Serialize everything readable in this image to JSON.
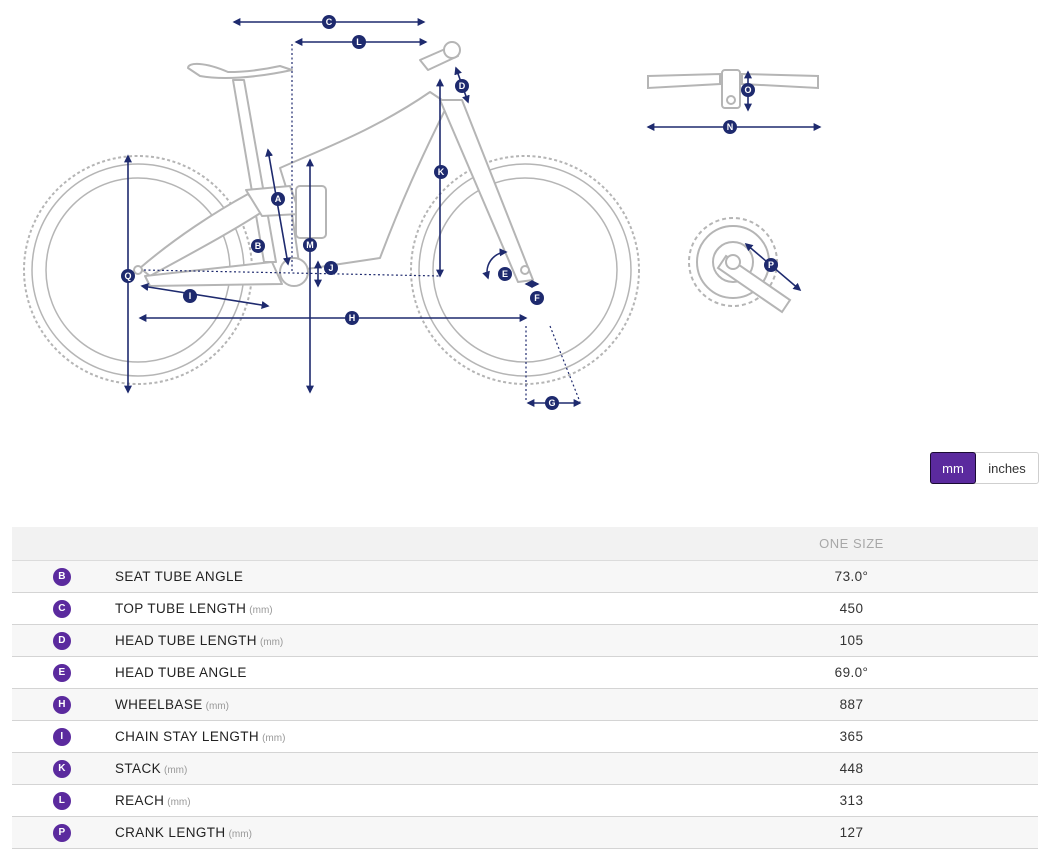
{
  "diagram": {
    "markers": [
      "A",
      "B",
      "C",
      "D",
      "E",
      "F",
      "G",
      "H",
      "I",
      "J",
      "K",
      "L",
      "M",
      "N",
      "O",
      "P",
      "Q"
    ],
    "colors": {
      "frame": "#b5b5b5",
      "tire": "#b5b5b5",
      "dimension": "#1e2a6e",
      "badge": "#5b2a9e"
    }
  },
  "unit_toggle": {
    "mm_label": "mm",
    "inches_label": "inches",
    "selected": "mm"
  },
  "table": {
    "header": "ONE SIZE",
    "rows": [
      {
        "key": "B",
        "name": "SEAT TUBE ANGLE",
        "unit": "",
        "value": "73.0°"
      },
      {
        "key": "C",
        "name": "TOP TUBE LENGTH",
        "unit": "(mm)",
        "value": "450"
      },
      {
        "key": "D",
        "name": "HEAD TUBE LENGTH",
        "unit": "(mm)",
        "value": "105"
      },
      {
        "key": "E",
        "name": "HEAD TUBE ANGLE",
        "unit": "",
        "value": "69.0°"
      },
      {
        "key": "H",
        "name": "WHEELBASE",
        "unit": "(mm)",
        "value": "887"
      },
      {
        "key": "I",
        "name": "CHAIN STAY LENGTH",
        "unit": "(mm)",
        "value": "365"
      },
      {
        "key": "K",
        "name": "STACK",
        "unit": "(mm)",
        "value": "448"
      },
      {
        "key": "L",
        "name": "REACH",
        "unit": "(mm)",
        "value": "313"
      },
      {
        "key": "P",
        "name": "CRANK LENGTH",
        "unit": "(mm)",
        "value": "127"
      }
    ]
  }
}
